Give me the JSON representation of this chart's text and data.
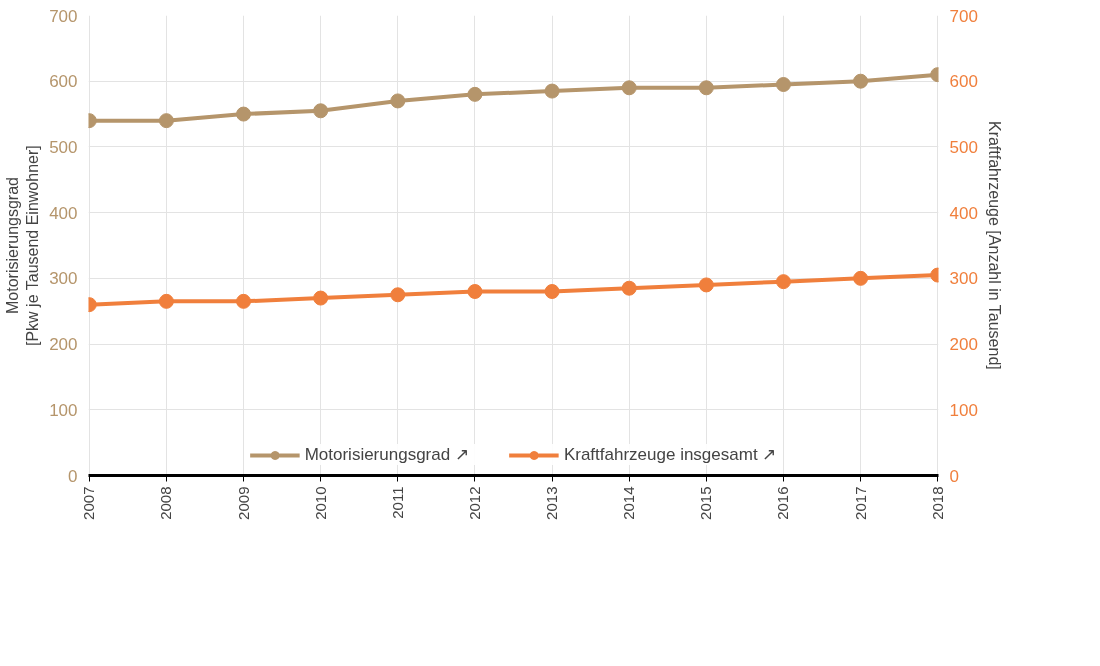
{
  "chart_data": {
    "type": "line",
    "ylabel": "Motorisierungsgrad\n[Pkw je Tausend Einwohner]",
    "y2label": "Kraftfahrzeuge [Anzahl in Tausend]",
    "categories": [
      "2007",
      "2008",
      "2009",
      "2010",
      "2011",
      "2012",
      "2013",
      "2014",
      "2015",
      "2016",
      "2017",
      "2018"
    ],
    "series": [
      {
        "name": "Motorisierungsgrad ↗",
        "color": "#b5956b",
        "values": [
          540,
          540,
          550,
          555,
          570,
          580,
          585,
          590,
          590,
          595,
          600,
          610
        ]
      },
      {
        "name": "Kraftfahrzeuge insgesamt ↗",
        "color": "#f07f3c",
        "axis": "y2",
        "values": [
          260,
          265,
          265,
          270,
          275,
          280,
          280,
          285,
          290,
          295,
          300,
          305
        ]
      }
    ],
    "ylim": [
      0,
      700
    ],
    "yticks": [
      0,
      100,
      200,
      300,
      400,
      500,
      600,
      700
    ],
    "y2lim": [
      0,
      700
    ],
    "y2ticks": [
      0,
      100,
      200,
      300,
      400,
      500,
      600,
      700
    ],
    "grid": true,
    "legend": "bottom",
    "marker": "circle",
    "line_style": "solid"
  }
}
